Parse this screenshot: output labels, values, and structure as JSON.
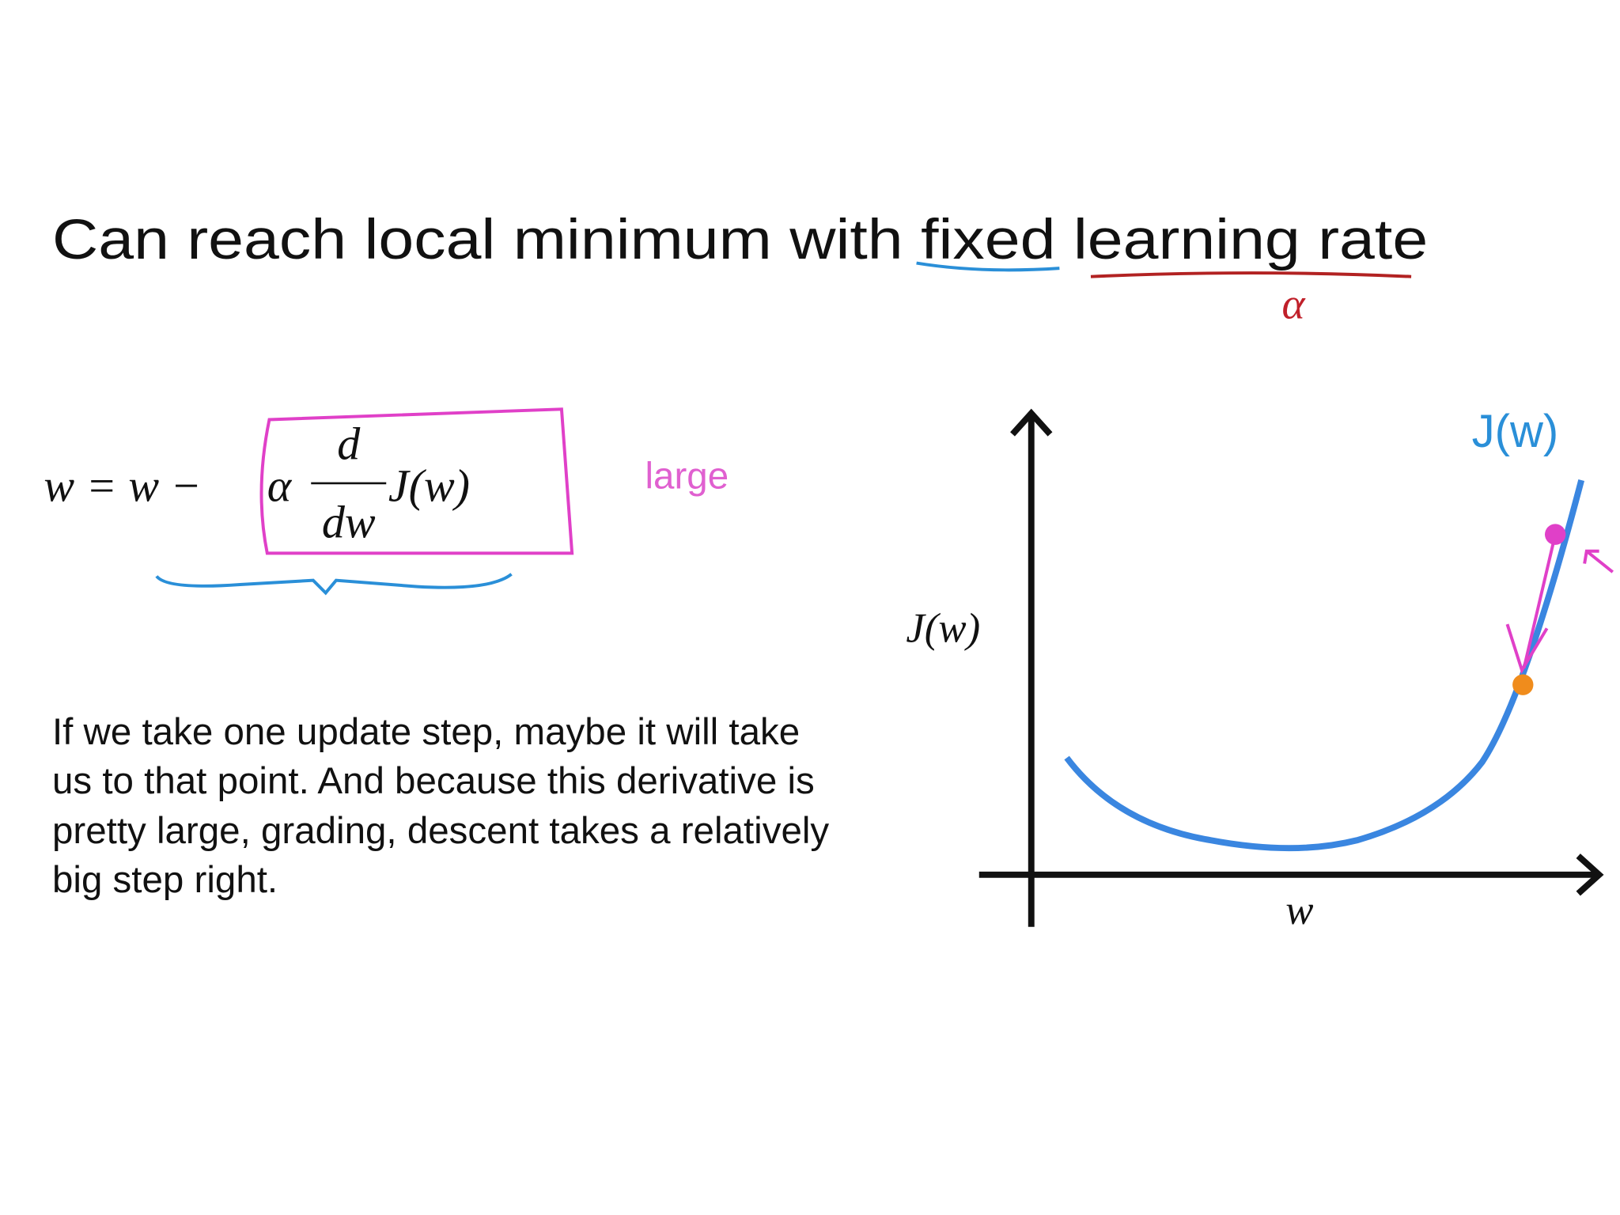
{
  "slide": {
    "title": "Can reach local minimum with fixed learning rate",
    "title_note": "α",
    "formula": {
      "lhs": "w = w −",
      "alpha": "α",
      "numerator": "d",
      "denominator": "dw",
      "function": "J(w)"
    },
    "annotation": "large",
    "caption": {
      "lines": [
        "If we take one update step, maybe it will take",
        "us to that point. And because this derivative is",
        "pretty large, grading, descent takes a relatively",
        "big step right."
      ]
    },
    "graph": {
      "y_label": "J(w)",
      "x_label": "w",
      "curve_label": "J(w)"
    }
  }
}
